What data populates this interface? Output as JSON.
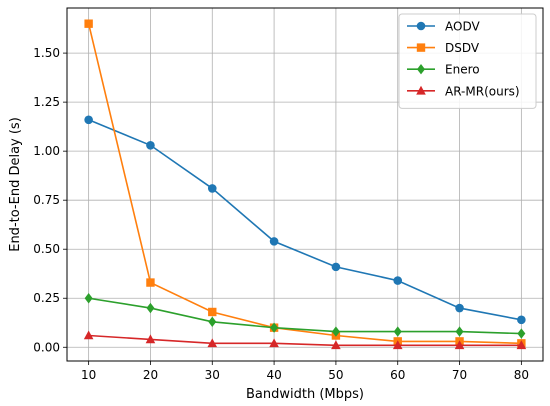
{
  "chart_data": {
    "type": "line",
    "title": "",
    "xlabel": "Bandwidth (Mbps)",
    "ylabel": "End-to-End Delay (s)",
    "x": [
      10,
      20,
      30,
      40,
      50,
      60,
      70,
      80
    ],
    "xlim": [
      6.5,
      83.5
    ],
    "ylim": [
      -0.07,
      1.73
    ],
    "xticks": [
      10,
      20,
      30,
      40,
      50,
      60,
      70,
      80
    ],
    "yticks": [
      0.0,
      0.25,
      0.5,
      0.75,
      1.0,
      1.25,
      1.5
    ],
    "xtick_labels": [
      "10",
      "20",
      "30",
      "40",
      "50",
      "60",
      "70",
      "80"
    ],
    "ytick_labels": [
      "0.00",
      "0.25",
      "0.50",
      "0.75",
      "1.00",
      "1.25",
      "1.50"
    ],
    "grid": true,
    "legend_position": "top-right",
    "series": [
      {
        "name": "AODV",
        "color": "#1f77b4",
        "marker": "circle",
        "values": [
          1.16,
          1.03,
          0.81,
          0.54,
          0.41,
          0.34,
          0.2,
          0.14
        ]
      },
      {
        "name": "DSDV",
        "color": "#ff7f0e",
        "marker": "square",
        "values": [
          1.65,
          0.33,
          0.18,
          0.1,
          0.06,
          0.03,
          0.03,
          0.02
        ]
      },
      {
        "name": "Enero",
        "color": "#2ca02c",
        "marker": "diamond",
        "values": [
          0.25,
          0.2,
          0.13,
          0.1,
          0.08,
          0.08,
          0.08,
          0.07
        ]
      },
      {
        "name": "AR-MR(ours)",
        "color": "#d62728",
        "marker": "triangle",
        "values": [
          0.06,
          0.04,
          0.02,
          0.02,
          0.01,
          0.01,
          0.01,
          0.01
        ]
      }
    ]
  }
}
